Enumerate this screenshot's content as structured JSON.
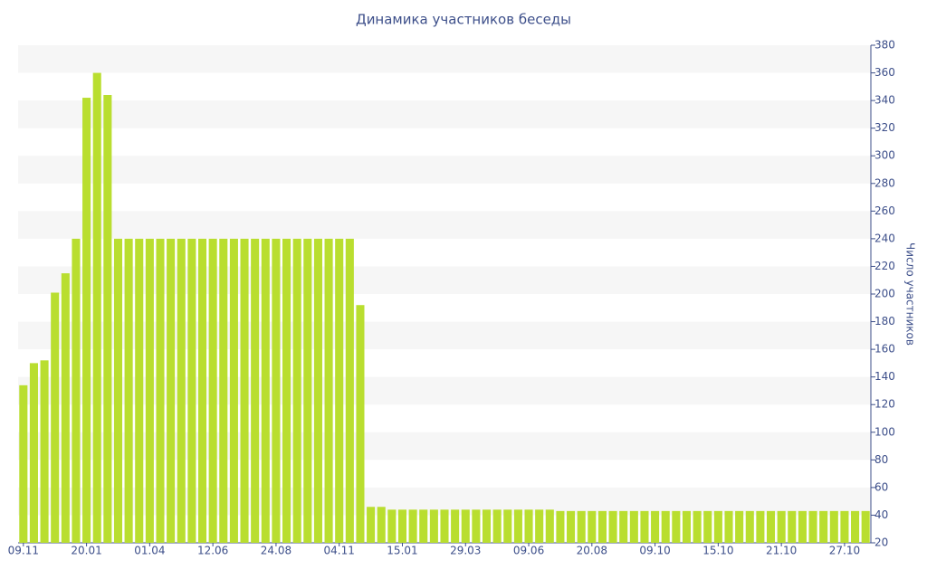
{
  "chart_data": {
    "type": "bar",
    "title": "Динамика участников беседы",
    "y_axis_label": "Число участников",
    "categories": [
      "09.11",
      null,
      null,
      null,
      null,
      null,
      "20.01",
      null,
      null,
      null,
      null,
      null,
      "01.04",
      null,
      null,
      null,
      null,
      null,
      "12.06",
      null,
      null,
      null,
      null,
      null,
      "24.08",
      null,
      null,
      null,
      null,
      null,
      "04.11",
      null,
      null,
      null,
      null,
      null,
      "15.01",
      null,
      null,
      null,
      null,
      null,
      "29.03",
      null,
      null,
      null,
      null,
      null,
      "09.06",
      null,
      null,
      null,
      null,
      null,
      "20.08",
      null,
      null,
      null,
      null,
      null,
      "09.10",
      null,
      null,
      null,
      null,
      null,
      "15.10",
      null,
      null,
      null,
      null,
      null,
      "21.10",
      null,
      null,
      null,
      null,
      null,
      "27.10",
      null,
      null
    ],
    "values": [
      134,
      150,
      152,
      201,
      215,
      240,
      342,
      360,
      344,
      240,
      240,
      240,
      240,
      240,
      240,
      240,
      240,
      240,
      240,
      240,
      240,
      240,
      240,
      240,
      240,
      240,
      240,
      240,
      240,
      240,
      240,
      240,
      192,
      46,
      46,
      44,
      44,
      44,
      44,
      44,
      44,
      44,
      44,
      44,
      44,
      44,
      44,
      44,
      44,
      44,
      44,
      43,
      43,
      43,
      43,
      43,
      43,
      43,
      43,
      43,
      43,
      43,
      43,
      43,
      43,
      43,
      43,
      43,
      43,
      43,
      43,
      43,
      43,
      43,
      43,
      43,
      43,
      43,
      43,
      43,
      43
    ],
    "color": "#b9de2f",
    "ylim": [
      20,
      380
    ],
    "yticks": [
      20,
      40,
      60,
      80,
      100,
      120,
      140,
      160,
      180,
      200,
      220,
      240,
      260,
      280,
      300,
      320,
      340,
      360,
      380
    ],
    "grid": true,
    "y_axis_side": "right"
  }
}
